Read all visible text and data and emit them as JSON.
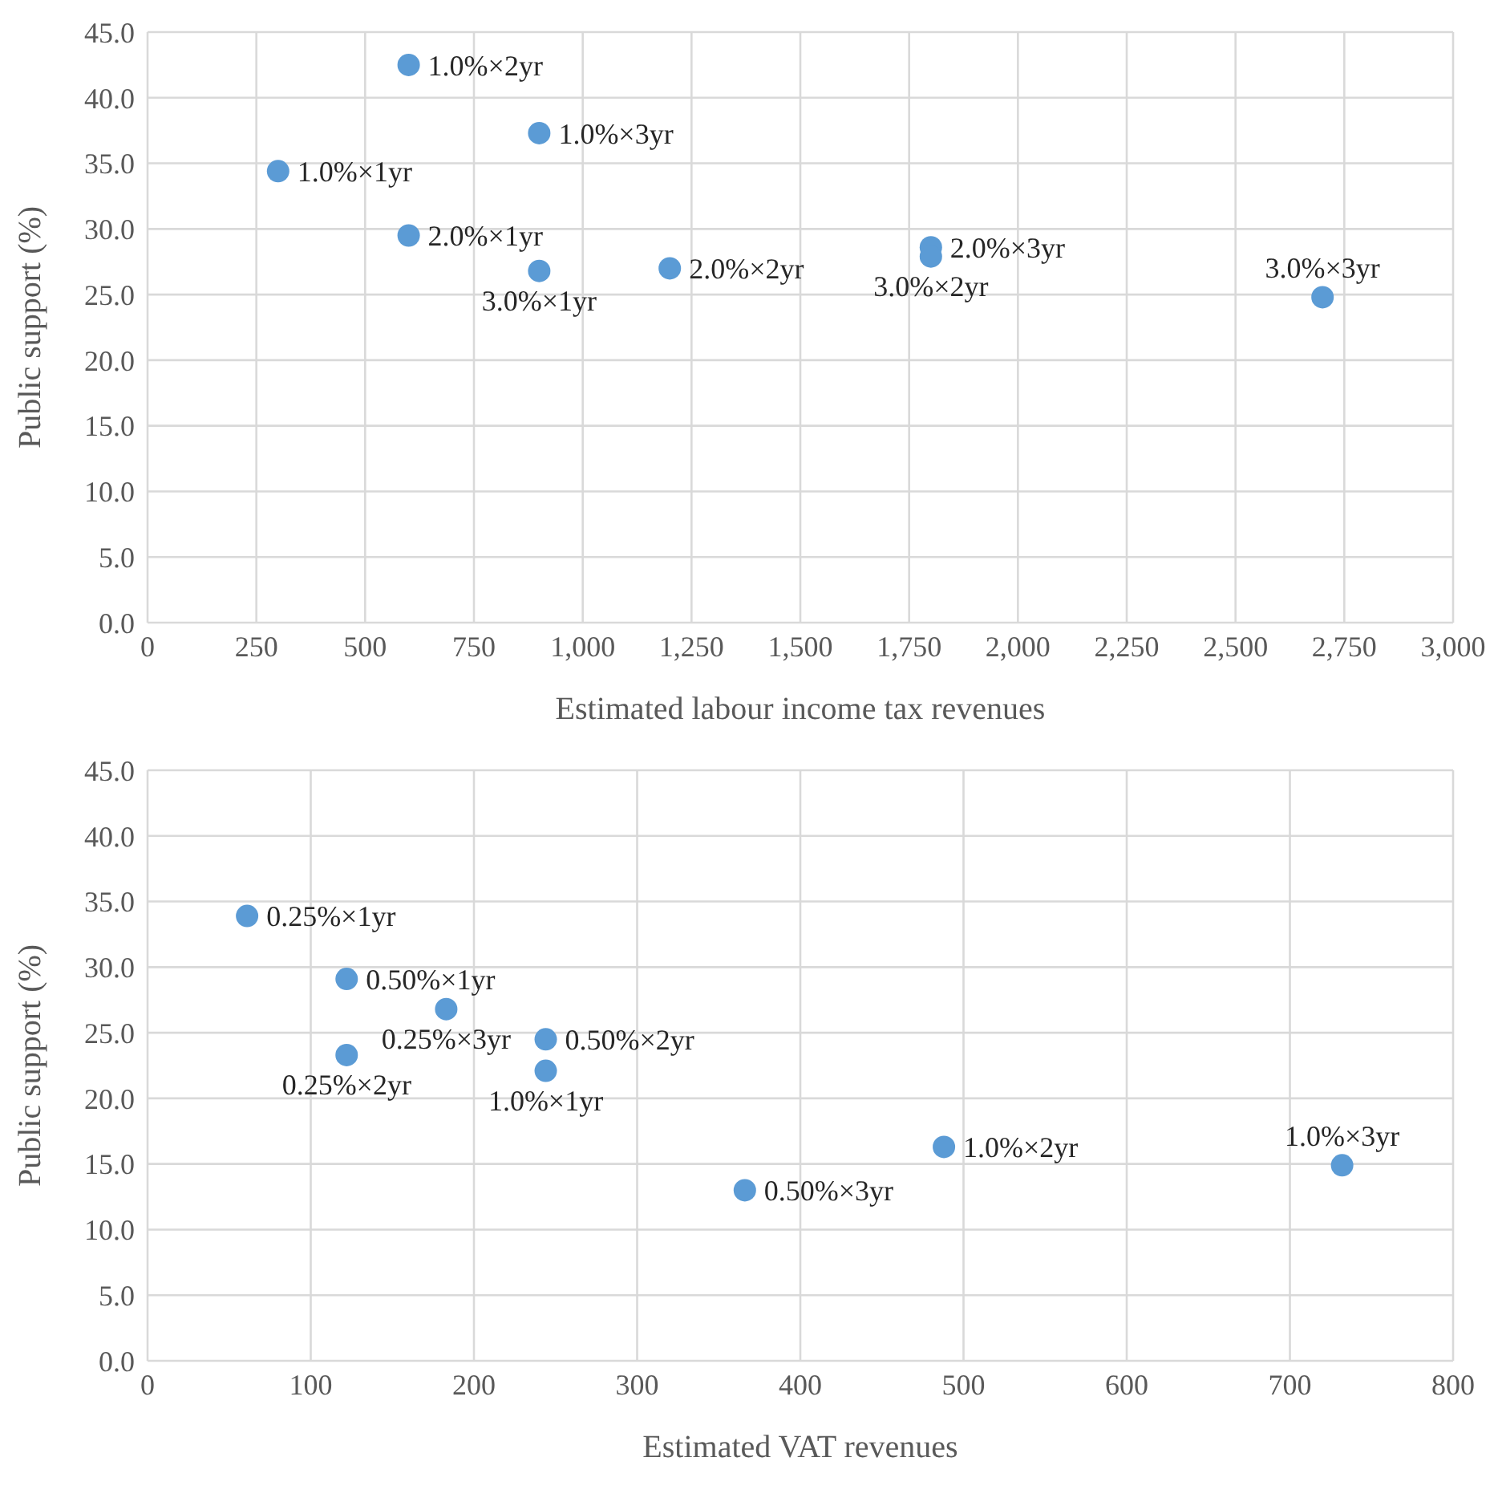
{
  "chart_data": [
    {
      "type": "scatter",
      "xlabel": "Estimated labour income tax revenues",
      "ylabel": "Public support (%)",
      "marker": "circle",
      "grid": true,
      "legend": false,
      "series": [
        {
          "color": "#5b9bd5",
          "x": [
            300,
            600,
            900,
            600,
            900,
            1200,
            1800,
            1800,
            2700
          ],
          "values": [
            34.4,
            42.5,
            37.3,
            29.5,
            26.8,
            27.0,
            28.6,
            27.9,
            24.8
          ]
        }
      ],
      "xlim": [
        0,
        3000
      ],
      "xticks": [
        0,
        250,
        500,
        750,
        {
          "value": 1000,
          "label": "1,000"
        },
        {
          "value": 1250,
          "label": "1,250"
        },
        {
          "value": 1500,
          "label": "1,500"
        },
        {
          "value": 1750,
          "label": "1,750"
        },
        {
          "value": 2000,
          "label": "2,000"
        },
        {
          "value": 2250,
          "label": "2,250"
        },
        {
          "value": 2500,
          "label": "2,500"
        },
        {
          "value": 2750,
          "label": "2,750"
        },
        {
          "value": 3000,
          "label": "3,000"
        }
      ],
      "ylim": [
        0,
        45
      ],
      "yticks": [
        {
          "value": 0,
          "label": "0.0"
        },
        {
          "value": 5,
          "label": "5.0"
        },
        {
          "value": 10,
          "label": "10.0"
        },
        {
          "value": 15,
          "label": "15.0"
        },
        {
          "value": 20,
          "label": "20.0"
        },
        {
          "value": 25,
          "label": "25.0"
        },
        {
          "value": 30,
          "label": "30.0"
        },
        {
          "value": 35,
          "label": "35.0"
        },
        {
          "value": 40,
          "label": "40.0"
        },
        {
          "value": 45,
          "label": "45.0"
        }
      ],
      "annotations": [
        {
          "text": "1.0%×1yr",
          "x": 300,
          "y": 34.4
        },
        {
          "text": "1.0%×2yr",
          "x": 600,
          "y": 42.5
        },
        {
          "text": "1.0%×3yr",
          "x": 900,
          "y": 37.3
        },
        {
          "text": "2.0%×1yr",
          "x": 600,
          "y": 29.5
        },
        {
          "text": "3.0%×1yr",
          "x": 900,
          "y": 26.8
        },
        {
          "text": "2.0%×2yr",
          "x": 1200,
          "y": 27.0
        },
        {
          "text": "2.0%×3yr",
          "x": 1800,
          "y": 28.6
        },
        {
          "text": "3.0%×2yr",
          "x": 1800,
          "y": 27.9
        },
        {
          "text": "3.0%×3yr",
          "x": 2700,
          "y": 24.8
        }
      ]
    },
    {
      "type": "scatter",
      "xlabel": "Estimated VAT revenues",
      "ylabel": "Public support (%)",
      "marker": "circle",
      "grid": true,
      "legend": false,
      "series": [
        {
          "color": "#5b9bd5",
          "x": [
            61,
            122,
            183,
            244,
            244,
            122,
            366,
            488,
            732
          ],
          "values": [
            33.9,
            29.1,
            26.8,
            24.5,
            22.1,
            23.3,
            13.0,
            16.3,
            14.9
          ]
        }
      ],
      "xlim": [
        0,
        800
      ],
      "xticks": [
        0,
        100,
        200,
        300,
        400,
        500,
        600,
        700,
        800
      ],
      "ylim": [
        0,
        45
      ],
      "yticks": [
        {
          "value": 0,
          "label": "0.0"
        },
        {
          "value": 5,
          "label": "5.0"
        },
        {
          "value": 10,
          "label": "10.0"
        },
        {
          "value": 15,
          "label": "15.0"
        },
        {
          "value": 20,
          "label": "20.0"
        },
        {
          "value": 25,
          "label": "25.0"
        },
        {
          "value": 30,
          "label": "30.0"
        },
        {
          "value": 35,
          "label": "35.0"
        },
        {
          "value": 40,
          "label": "40.0"
        },
        {
          "value": 45,
          "label": "45.0"
        }
      ],
      "annotations": [
        {
          "text": "0.25%×1yr",
          "x": 61,
          "y": 33.9
        },
        {
          "text": "0.50%×1yr",
          "x": 122,
          "y": 29.1
        },
        {
          "text": "0.25%×3yr",
          "x": 183,
          "y": 26.8
        },
        {
          "text": "0.50%×2yr",
          "x": 244,
          "y": 24.5
        },
        {
          "text": "1.0%×1yr",
          "x": 244,
          "y": 22.1
        },
        {
          "text": "0.25%×2yr",
          "x": 122,
          "y": 23.3
        },
        {
          "text": "0.50%×3yr",
          "x": 366,
          "y": 13.0
        },
        {
          "text": "1.0%×2yr",
          "x": 488,
          "y": 16.3
        },
        {
          "text": "1.0%×3yr",
          "x": 732,
          "y": 14.9
        }
      ]
    }
  ]
}
